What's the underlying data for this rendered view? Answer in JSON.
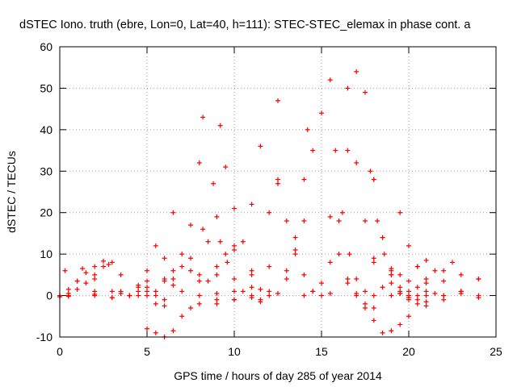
{
  "chart_data": {
    "type": "scatter",
    "title": "dSTEC Iono. truth (ebre, Lon=0, Lat=40, h=111): STEC-STEC_elemax in phase cont. a",
    "xlabel": "GPS time / hours of day 285 of year 2014",
    "ylabel": "dSTEC  / TECUs",
    "xlim": [
      0,
      25
    ],
    "ylim": [
      -10,
      60
    ],
    "xticks": [
      0,
      5,
      10,
      15,
      20,
      25
    ],
    "yticks": [
      -10,
      0,
      10,
      20,
      30,
      40,
      50,
      60
    ],
    "xtick_labels": [
      "0",
      "5",
      "10",
      "15",
      "20",
      "25"
    ],
    "ytick_labels": [
      "-10",
      "0",
      "10",
      "20",
      "30",
      "40",
      "50",
      "60"
    ],
    "grid": true,
    "marker": "+",
    "color": "#ff0000",
    "series": [
      {
        "x": [
          0.0,
          0.5,
          1.0,
          1.5,
          2.0,
          2.5
        ],
        "y": [
          0.0,
          1.5,
          3.5,
          5.5,
          7.0,
          8.3
        ]
      },
      {
        "x": [
          0.0,
          0.5,
          1.0,
          1.5,
          2.0,
          2.5,
          3.0
        ],
        "y": [
          -0.3,
          0.5,
          1.5,
          3.0,
          5.0,
          7.0,
          8.0
        ]
      },
      {
        "x": [
          0.3,
          1.0,
          2.0,
          3.0,
          4.0,
          5.0
        ],
        "y": [
          6.0,
          3.5,
          1.0,
          -0.5,
          0.0,
          2.0
        ]
      },
      {
        "x": [
          1.3,
          2.0,
          3.0,
          4.0,
          4.5
        ],
        "y": [
          6.5,
          4.0,
          1.0,
          0.0,
          1.0
        ]
      },
      {
        "x": [
          2.8,
          3.5,
          4.5,
          5.5,
          6.0
        ],
        "y": [
          7.5,
          5.0,
          2.0,
          0.0,
          -1.0
        ]
      },
      {
        "x": [
          0.5,
          2.0,
          3.5,
          4.5,
          5.0,
          5.5
        ],
        "y": [
          -0.2,
          0.0,
          0.5,
          2.5,
          6.0,
          12.0
        ]
      },
      {
        "x": [
          0.5,
          2.0,
          3.5,
          5.0,
          6.0,
          6.5
        ],
        "y": [
          0.0,
          0.3,
          1.0,
          3.5,
          9.0,
          20.0
        ]
      },
      {
        "x": [
          3.0,
          4.0,
          5.0,
          6.0,
          6.5,
          7.0,
          7.5,
          8.0,
          8.2
        ],
        "y": [
          -0.5,
          0.0,
          1.0,
          3.5,
          6.0,
          10.0,
          17.0,
          32.0,
          43.0
        ]
      },
      {
        "x": [
          4.0,
          5.5,
          6.5,
          7.5,
          8.2,
          8.8,
          9.2
        ],
        "y": [
          0.0,
          1.0,
          4.0,
          9.0,
          16.0,
          27.0,
          41.0
        ]
      },
      {
        "x": [
          5.0,
          6.5,
          7.5,
          8.5,
          9.0,
          9.5
        ],
        "y": [
          0.0,
          2.5,
          6.0,
          13.0,
          19.0,
          31.0
        ]
      },
      {
        "x": [
          5.5,
          6.5,
          7.5,
          8.5,
          9.5,
          10.0
        ],
        "y": [
          -9.0,
          -8.5,
          -3.0,
          3.5,
          10.0,
          12.0
        ]
      },
      {
        "x": [
          5.0,
          6.0,
          7.0,
          8.0,
          9.0,
          10.0,
          11.0,
          11.5
        ],
        "y": [
          -8.0,
          -10.0,
          -5.0,
          0.0,
          5.0,
          11.0,
          22.0,
          36.0
        ]
      },
      {
        "x": [
          4.5,
          5.5,
          6.0,
          7.0,
          8.0,
          9.0
        ],
        "y": [
          0.0,
          -2.0,
          -2.5,
          1.0,
          5.0,
          7.0
        ]
      },
      {
        "x": [
          6.0,
          7.0,
          8.0,
          9.0,
          10.0,
          11.0
        ],
        "y": [
          4.0,
          7.0,
          3.5,
          0.5,
          -1.0,
          0.0
        ]
      },
      {
        "x": [
          8.0,
          9.0,
          10.0,
          11.0,
          12.0,
          12.5
        ],
        "y": [
          -2.0,
          -1.0,
          1.0,
          5.0,
          20.0,
          47.0
        ]
      },
      {
        "x": [
          9.0,
          10.0,
          11.0,
          12.0,
          12.5
        ],
        "y": [
          -2.0,
          -1.0,
          2.0,
          7.0,
          27.0
        ]
      },
      {
        "x": [
          9.2,
          9.6,
          10.0,
          10.5,
          11.0,
          11.5
        ],
        "y": [
          13.0,
          8.0,
          4.0,
          1.0,
          -0.5,
          -1.5
        ]
      },
      {
        "x": [
          10.0,
          10.5,
          11.0,
          11.5,
          12.0
        ],
        "y": [
          21.0,
          13.0,
          6.0,
          1.5,
          0.0
        ]
      },
      {
        "x": [
          11.5,
          12.5,
          13.0,
          13.5,
          14.0,
          14.5,
          15.0
        ],
        "y": [
          -1.0,
          0.5,
          4.0,
          10.0,
          18.0,
          35.0,
          44.0
        ]
      },
      {
        "x": [
          12.0,
          13.0,
          13.5,
          14.0,
          14.2
        ],
        "y": [
          1.0,
          6.0,
          14.0,
          28.0,
          40.0
        ]
      },
      {
        "x": [
          12.5,
          13.0,
          13.5,
          14.0,
          14.5,
          15.0,
          15.5
        ],
        "y": [
          28.0,
          18.0,
          11.0,
          5.0,
          1.0,
          0.0,
          0.5
        ]
      },
      {
        "x": [
          14.0,
          14.5,
          15.0,
          15.5,
          16.0,
          16.5,
          17.0
        ],
        "y": [
          0.0,
          1.0,
          3.0,
          8.0,
          18.0,
          35.0,
          54.0
        ]
      },
      {
        "x": [
          15.5,
          15.8,
          16.2,
          16.6,
          17.0,
          17.5,
          18.0
        ],
        "y": [
          52.0,
          35.0,
          20.0,
          10.0,
          4.0,
          1.0,
          0.0
        ]
      },
      {
        "x": [
          16.5,
          17.0,
          17.5,
          18.0,
          18.5,
          19.0,
          19.5
        ],
        "y": [
          50.0,
          32.0,
          18.0,
          8.0,
          2.0,
          0.0,
          0.5
        ]
      },
      {
        "x": [
          17.5,
          18.0,
          18.5,
          19.0,
          19.5,
          20.0
        ],
        "y": [
          49.0,
          28.0,
          14.0,
          5.0,
          0.5,
          -1.0
        ]
      },
      {
        "x": [
          17.8,
          18.2,
          18.6,
          19.0,
          19.5,
          20.0,
          20.5
        ],
        "y": [
          30.0,
          18.0,
          10.0,
          5.0,
          1.0,
          -0.5,
          0.0
        ]
      },
      {
        "x": [
          18.0,
          18.5,
          19.0,
          19.5,
          20.0,
          20.5,
          21.0
        ],
        "y": [
          28.0,
          14.0,
          6.0,
          2.0,
          0.0,
          -1.0,
          -1.5
        ]
      },
      {
        "x": [
          15.5,
          16.0,
          16.5,
          17.0,
          17.5,
          18.0
        ],
        "y": [
          19.0,
          10.0,
          4.0,
          0.5,
          -2.0,
          -3.0
        ]
      },
      {
        "x": [
          16.5,
          17.0,
          17.5,
          18.0,
          18.5,
          19.0,
          19.5,
          20.0
        ],
        "y": [
          3.0,
          0.0,
          -3.0,
          -6.0,
          -9.0,
          -8.5,
          -7.0,
          -5.0
        ]
      },
      {
        "x": [
          19.0,
          19.5,
          20.0,
          20.5,
          21.0,
          22.0,
          23.0
        ],
        "y": [
          6.5,
          5.0,
          3.5,
          2.0,
          1.0,
          0.0,
          0.5
        ]
      },
      {
        "x": [
          19.5,
          20.0,
          20.5,
          21.0,
          21.5
        ],
        "y": [
          20.0,
          12.0,
          7.0,
          3.0,
          0.5
        ]
      },
      {
        "x": [
          20.5,
          21.0,
          22.0,
          23.0,
          24.0
        ],
        "y": [
          -2.0,
          -2.5,
          -1.0,
          1.0,
          4.0
        ]
      },
      {
        "x": [
          20.0,
          21.0,
          22.0,
          22.5,
          23.0,
          24.0
        ],
        "y": [
          0.0,
          4.0,
          6.0,
          8.0,
          5.0,
          0.0
        ]
      },
      {
        "x": [
          20.5,
          21.0,
          21.5,
          22.0,
          23.0,
          24.0
        ],
        "y": [
          7.0,
          8.5,
          6.0,
          3.5,
          1.0,
          -0.5
        ]
      },
      {
        "x": [
          18.0,
          19.0,
          20.0,
          21.0,
          22.0,
          23.0,
          24.0
        ],
        "y": [
          9.0,
          3.0,
          1.0,
          0.0,
          0.0,
          1.0,
          4.0
        ]
      }
    ]
  }
}
